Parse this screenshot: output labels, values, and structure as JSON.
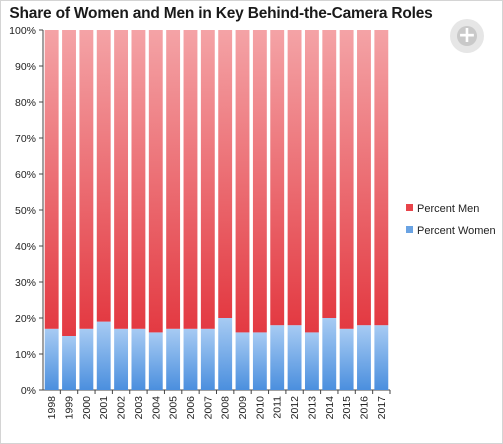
{
  "chart_data": {
    "type": "bar",
    "stacked": true,
    "title": "Share of Women and Men in Key Behind-the-Camera Roles",
    "categories": [
      "1998",
      "1999",
      "2000",
      "2001",
      "2002",
      "2003",
      "2004",
      "2005",
      "2006",
      "2007",
      "2008",
      "2009",
      "2010",
      "2011",
      "2012",
      "2013",
      "2014",
      "2015",
      "2016",
      "2017"
    ],
    "series": [
      {
        "name": "Percent Women",
        "color": "#6aa3e3",
        "values": [
          17,
          15,
          17,
          19,
          17,
          17,
          16,
          17,
          17,
          17,
          20,
          16,
          16,
          18,
          18,
          16,
          20,
          17,
          18,
          18
        ]
      },
      {
        "name": "Percent Men",
        "color": "#e8444a",
        "values": [
          83,
          85,
          83,
          81,
          83,
          83,
          84,
          83,
          83,
          83,
          80,
          84,
          84,
          82,
          82,
          84,
          80,
          83,
          82,
          82
        ]
      }
    ],
    "ylim": [
      0,
      100
    ],
    "yticks": [
      "0%",
      "10%",
      "20%",
      "30%",
      "40%",
      "50%",
      "60%",
      "70%",
      "80%",
      "90%",
      "100%"
    ],
    "xlabel": "",
    "ylabel": "",
    "legend_position": "right",
    "legend_order": [
      "Percent Men",
      "Percent Women"
    ],
    "grid": false
  },
  "ui": {
    "expand_icon": "expand-plus-icon"
  }
}
